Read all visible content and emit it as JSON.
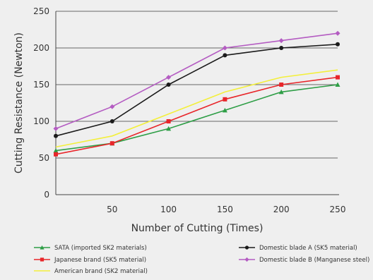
{
  "chart_data": {
    "type": "line",
    "xlabel": "Number of Cutting (Times)",
    "ylabel": "Cutting Resistance (Newton)",
    "x": [
      0,
      50,
      100,
      150,
      200,
      250
    ],
    "x_ticks": [
      "50",
      "100",
      "150",
      "200",
      "250"
    ],
    "y_ticks": [
      "0",
      "50",
      "100",
      "150",
      "200",
      "250"
    ],
    "xlim": [
      0,
      250
    ],
    "ylim": [
      0,
      250
    ],
    "grid": "horizontal",
    "legend_position": "bottom",
    "series": [
      {
        "name": "SATA (imported SK2 materials)",
        "color": "#2e9e46",
        "marker": "triangle",
        "values": [
          60,
          70,
          90,
          115,
          140,
          150
        ]
      },
      {
        "name": "Japanese brand (SK5 material)",
        "color": "#e8262a",
        "marker": "square",
        "values": [
          55,
          70,
          100,
          130,
          150,
          160
        ]
      },
      {
        "name": "American brand (SK2 material)",
        "color": "#f3ef3b",
        "marker": "none",
        "values": [
          65,
          80,
          110,
          140,
          160,
          170
        ]
      },
      {
        "name": "Domestic blade A (SK5 material)",
        "color": "#1b1b1b",
        "marker": "circle",
        "values": [
          80,
          100,
          150,
          190,
          200,
          205
        ]
      },
      {
        "name": "Domestic blade B (Manganese steel)",
        "color": "#b45cc2",
        "marker": "diamond",
        "values": [
          90,
          120,
          160,
          200,
          210,
          220
        ]
      }
    ]
  }
}
